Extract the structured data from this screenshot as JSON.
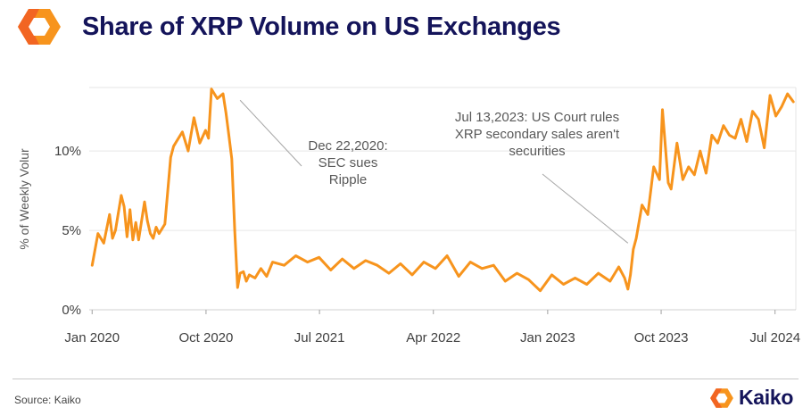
{
  "header": {
    "title": "Share of XRP Volume on US Exchanges",
    "logo_icon": "kaiko-hexagon-logo-icon",
    "accent_colors": [
      "#f7941d",
      "#f26522"
    ]
  },
  "chart_data": {
    "type": "line",
    "title": "Share of XRP Volume on US Exchanges",
    "xlabel": "",
    "ylabel": "% of Weekly Volur",
    "ylim": [
      0,
      14
    ],
    "xlim": [
      "2019-12-25",
      "2024-08-20"
    ],
    "grid": true,
    "line_color": "#f7941d",
    "x_ticks": [
      "Jan 2020",
      "Oct 2020",
      "Jul 2021",
      "Apr 2022",
      "Jan 2023",
      "Oct 2023",
      "Jul 2024"
    ],
    "x_tick_dates": [
      "2020-01-01",
      "2020-10-01",
      "2021-07-01",
      "2022-04-01",
      "2023-01-01",
      "2023-10-01",
      "2024-07-01"
    ],
    "y_ticks": [
      "0%",
      "5%",
      "10%"
    ],
    "y_tick_values": [
      0,
      5,
      10
    ],
    "series": [
      {
        "x": [
          "2020-01-01",
          "2020-01-15",
          "2020-01-29",
          "2020-02-12",
          "2020-02-19",
          "2020-02-26",
          "2020-03-11",
          "2020-03-18",
          "2020-03-25",
          "2020-04-01",
          "2020-04-08",
          "2020-04-15",
          "2020-04-22",
          "2020-05-06",
          "2020-05-13",
          "2020-05-20",
          "2020-05-27",
          "2020-06-03",
          "2020-06-10",
          "2020-06-24",
          "2020-07-08",
          "2020-07-15",
          "2020-07-22",
          "2020-08-05",
          "2020-08-19",
          "2020-09-02",
          "2020-09-16",
          "2020-09-30",
          "2020-10-07",
          "2020-10-14",
          "2020-10-28",
          "2020-11-11",
          "2020-11-18",
          "2020-11-25",
          "2020-12-02",
          "2020-12-09",
          "2020-12-16",
          "2020-12-22",
          "2020-12-30",
          "2021-01-06",
          "2021-01-13",
          "2021-01-27",
          "2021-02-10",
          "2021-02-24",
          "2021-03-10",
          "2021-04-07",
          "2021-05-05",
          "2021-06-02",
          "2021-06-30",
          "2021-07-28",
          "2021-08-25",
          "2021-09-22",
          "2021-10-20",
          "2021-11-17",
          "2021-12-15",
          "2022-01-12",
          "2022-02-09",
          "2022-03-09",
          "2022-04-06",
          "2022-05-04",
          "2022-06-01",
          "2022-06-29",
          "2022-07-27",
          "2022-08-24",
          "2022-09-21",
          "2022-10-19",
          "2022-11-16",
          "2022-12-14",
          "2023-01-11",
          "2023-02-08",
          "2023-03-08",
          "2023-04-05",
          "2023-05-03",
          "2023-05-31",
          "2023-06-21",
          "2023-07-05",
          "2023-07-13",
          "2023-07-19",
          "2023-07-26",
          "2023-08-02",
          "2023-08-16",
          "2023-08-30",
          "2023-09-13",
          "2023-09-27",
          "2023-10-04",
          "2023-10-18",
          "2023-10-25",
          "2023-11-08",
          "2023-11-22",
          "2023-12-06",
          "2023-12-20",
          "2024-01-03",
          "2024-01-17",
          "2024-01-31",
          "2024-02-14",
          "2024-02-28",
          "2024-03-13",
          "2024-03-27",
          "2024-04-10",
          "2024-04-24",
          "2024-05-08",
          "2024-05-22",
          "2024-06-05",
          "2024-06-19",
          "2024-07-03",
          "2024-07-17",
          "2024-07-31",
          "2024-08-14"
        ],
        "y": [
          2.8,
          4.8,
          4.2,
          6.0,
          4.5,
          5.0,
          7.2,
          6.5,
          4.6,
          6.3,
          4.4,
          5.5,
          4.4,
          6.8,
          5.6,
          4.8,
          4.5,
          5.2,
          4.8,
          5.4,
          9.6,
          10.3,
          10.6,
          11.2,
          10.0,
          12.1,
          10.5,
          11.3,
          10.8,
          13.9,
          13.3,
          13.6,
          12.4,
          11.0,
          9.5,
          5.0,
          1.4,
          2.3,
          2.4,
          1.8,
          2.2,
          2.0,
          2.6,
          2.1,
          3.0,
          2.8,
          3.4,
          3.0,
          3.3,
          2.5,
          3.2,
          2.6,
          3.1,
          2.8,
          2.3,
          2.9,
          2.2,
          3.0,
          2.6,
          3.4,
          2.1,
          3.0,
          2.6,
          2.8,
          1.8,
          2.3,
          1.9,
          1.2,
          2.2,
          1.6,
          2.0,
          1.6,
          2.3,
          1.8,
          2.7,
          2.0,
          1.3,
          2.2,
          3.8,
          4.5,
          6.6,
          6.0,
          9.0,
          8.2,
          12.6,
          8.0,
          7.6,
          10.5,
          8.2,
          9.0,
          8.5,
          10.0,
          8.6,
          11.0,
          10.5,
          11.6,
          11.0,
          10.8,
          12.0,
          10.6,
          12.5,
          12.0,
          10.2,
          13.5,
          12.2,
          12.8,
          13.6,
          13.1
        ]
      }
    ],
    "annotations": [
      {
        "text": "Dec 22,2020:\nSEC sues\nRipple",
        "point": [
          "2020-12-22",
          13.2
        ]
      },
      {
        "text": "Jul 13,2023: US Court rules\nXRP secondary sales aren't\nsecurities",
        "point": [
          "2023-07-13",
          4.2
        ]
      }
    ]
  },
  "footer": {
    "source": "Source: Kaiko",
    "brand_name": "Kaiko",
    "brand_icon": "kaiko-hexagon-logo-icon"
  }
}
